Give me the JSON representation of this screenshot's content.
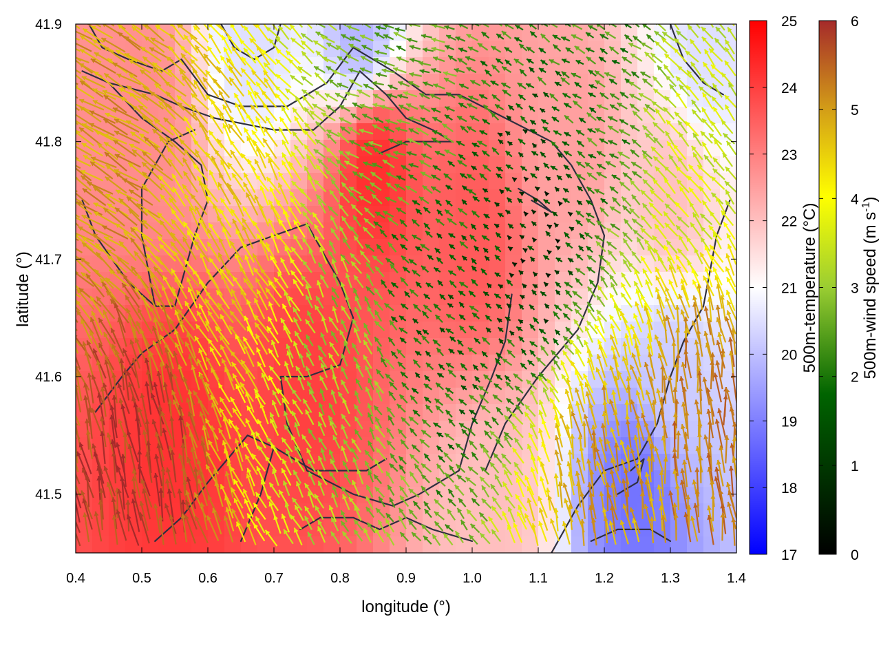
{
  "chart_data": {
    "type": "heatmap",
    "subtype": "temperature field with wind vectors and contour lines",
    "xlabel": "longitude (°)",
    "ylabel": "latitude (°)",
    "xlim": [
      0.4,
      1.4
    ],
    "ylim": [
      41.45,
      41.9
    ],
    "x_ticks": [
      "0.4",
      "0.5",
      "0.6",
      "0.7",
      "0.8",
      "0.9",
      "1.0",
      "1.1",
      "1.2",
      "1.3",
      "1.4"
    ],
    "y_ticks": [
      "41.5",
      "41.6",
      "41.7",
      "41.8",
      "41.9"
    ],
    "grid": false,
    "temperature_colorbar": {
      "label": "500m-temperature (°C)",
      "range": [
        17,
        25
      ],
      "ticks": [
        "17",
        "18",
        "19",
        "20",
        "21",
        "22",
        "23",
        "24",
        "25"
      ],
      "colors": [
        "#0000ff",
        "#ffffff",
        "#ff0000"
      ]
    },
    "wind_colorbar": {
      "label_main": "500m-wind speed (m s",
      "label_sup": "-1",
      "label_end": ")",
      "range": [
        0,
        6
      ],
      "ticks": [
        "0",
        "1",
        "2",
        "3",
        "4",
        "5",
        "6"
      ],
      "colors": [
        "#000000",
        "#006400",
        "#9acd32",
        "#ffff00",
        "#d4a017",
        "#a52a2a"
      ]
    },
    "temperature_regions": [
      {
        "lon": 0.75,
        "lat": 41.6,
        "temp": 24.0
      },
      {
        "lon": 0.85,
        "lat": 41.78,
        "temp": 24.3
      },
      {
        "lon": 0.55,
        "lat": 41.55,
        "temp": 24.2
      },
      {
        "lon": 1.0,
        "lat": 41.72,
        "temp": 23.6
      },
      {
        "lon": 1.15,
        "lat": 41.8,
        "temp": 22.5
      },
      {
        "lon": 0.5,
        "lat": 41.82,
        "temp": 22.8
      },
      {
        "lon": 1.3,
        "lat": 41.75,
        "temp": 22.0
      },
      {
        "lon": 1.25,
        "lat": 41.5,
        "temp": 18.8
      },
      {
        "lon": 1.3,
        "lat": 41.6,
        "temp": 20.2
      },
      {
        "lon": 0.83,
        "lat": 41.89,
        "temp": 19.8
      },
      {
        "lon": 0.67,
        "lat": 41.89,
        "temp": 20.5
      },
      {
        "lon": 1.35,
        "lat": 41.88,
        "temp": 20.5
      },
      {
        "lon": 1.02,
        "lat": 41.48,
        "temp": 22.0
      }
    ],
    "wind_regions": [
      {
        "lon": 0.5,
        "lat": 41.5,
        "speed": 5.8,
        "dir_deg": 100
      },
      {
        "lon": 0.45,
        "lat": 41.8,
        "speed": 4.8,
        "dir_deg": 150
      },
      {
        "lon": 0.65,
        "lat": 41.7,
        "speed": 4.2,
        "dir_deg": 120
      },
      {
        "lon": 0.8,
        "lat": 41.6,
        "speed": 2.5,
        "dir_deg": 115
      },
      {
        "lon": 0.95,
        "lat": 41.65,
        "speed": 1.2,
        "dir_deg": 140
      },
      {
        "lon": 1.1,
        "lat": 41.72,
        "speed": 0.6,
        "dir_deg": 140
      },
      {
        "lon": 1.2,
        "lat": 41.85,
        "speed": 1.6,
        "dir_deg": 150
      },
      {
        "lon": 1.35,
        "lat": 41.55,
        "speed": 5.2,
        "dir_deg": 95
      },
      {
        "lon": 1.2,
        "lat": 41.5,
        "speed": 4.8,
        "dir_deg": 100
      },
      {
        "lon": 0.9,
        "lat": 41.85,
        "speed": 2.0,
        "dir_deg": 160
      },
      {
        "lon": 1.35,
        "lat": 41.8,
        "speed": 3.0,
        "dir_deg": 130
      }
    ],
    "contours": [
      [
        [
          0.41,
          41.86
        ],
        [
          0.45,
          41.85
        ],
        [
          0.52,
          41.84
        ],
        [
          0.56,
          41.83
        ],
        [
          0.61,
          41.82
        ],
        [
          0.7,
          41.81
        ],
        [
          0.76,
          41.81
        ],
        [
          0.8,
          41.83
        ],
        [
          0.83,
          41.86
        ],
        [
          0.87,
          41.84
        ],
        [
          0.9,
          41.82
        ],
        [
          0.94,
          41.81
        ],
        [
          0.97,
          41.8
        ],
        [
          0.9,
          41.8
        ],
        [
          0.86,
          41.79
        ]
      ],
      [
        [
          0.42,
          41.9
        ],
        [
          0.44,
          41.88
        ],
        [
          0.48,
          41.87
        ],
        [
          0.53,
          41.86
        ],
        [
          0.56,
          41.87
        ],
        [
          0.6,
          41.84
        ],
        [
          0.65,
          41.83
        ],
        [
          0.72,
          41.83
        ],
        [
          0.78,
          41.85
        ],
        [
          0.82,
          41.88
        ],
        [
          0.85,
          41.87
        ],
        [
          0.88,
          41.86
        ],
        [
          0.93,
          41.84
        ],
        [
          0.98,
          41.84
        ],
        [
          1.05,
          41.82
        ],
        [
          1.12,
          41.8
        ],
        [
          1.15,
          41.78
        ],
        [
          1.18,
          41.75
        ],
        [
          1.2,
          41.72
        ],
        [
          1.19,
          41.68
        ],
        [
          1.16,
          41.64
        ],
        [
          1.1,
          41.6
        ],
        [
          1.05,
          41.56
        ],
        [
          1.02,
          41.52
        ]
      ],
      [
        [
          0.41,
          41.75
        ],
        [
          0.43,
          41.72
        ],
        [
          0.48,
          41.68
        ],
        [
          0.52,
          41.66
        ],
        [
          0.55,
          41.66
        ],
        [
          0.56,
          41.68
        ],
        [
          0.58,
          41.72
        ],
        [
          0.6,
          41.75
        ],
        [
          0.59,
          41.78
        ],
        [
          0.55,
          41.8
        ],
        [
          0.5,
          41.82
        ],
        [
          0.45,
          41.85
        ]
      ],
      [
        [
          0.52,
          41.66
        ],
        [
          0.5,
          41.72
        ],
        [
          0.5,
          41.76
        ],
        [
          0.54,
          41.8
        ],
        [
          0.58,
          41.81
        ]
      ],
      [
        [
          0.43,
          41.57
        ],
        [
          0.47,
          41.6
        ],
        [
          0.5,
          41.62
        ],
        [
          0.55,
          41.64
        ],
        [
          0.6,
          41.68
        ],
        [
          0.65,
          41.71
        ],
        [
          0.7,
          41.72
        ],
        [
          0.75,
          41.73
        ],
        [
          0.77,
          41.71
        ],
        [
          0.8,
          41.68
        ],
        [
          0.82,
          41.65
        ],
        [
          0.8,
          41.61
        ],
        [
          0.75,
          41.6
        ],
        [
          0.71,
          41.6
        ],
        [
          0.72,
          41.56
        ],
        [
          0.75,
          41.52
        ],
        [
          0.82,
          41.5
        ],
        [
          0.88,
          41.49
        ],
        [
          0.92,
          41.5
        ],
        [
          0.98,
          41.52
        ],
        [
          1.0,
          41.56
        ],
        [
          1.03,
          41.6
        ],
        [
          1.05,
          41.63
        ],
        [
          1.06,
          41.67
        ]
      ],
      [
        [
          0.52,
          41.46
        ],
        [
          0.56,
          41.48
        ],
        [
          0.6,
          41.51
        ],
        [
          0.63,
          41.53
        ],
        [
          0.66,
          41.55
        ],
        [
          0.7,
          41.54
        ],
        [
          0.73,
          41.53
        ],
        [
          0.76,
          41.52
        ],
        [
          0.8,
          41.52
        ],
        [
          0.84,
          41.52
        ],
        [
          0.87,
          41.53
        ]
      ],
      [
        [
          0.65,
          41.46
        ],
        [
          0.68,
          41.5
        ],
        [
          0.7,
          41.54
        ]
      ],
      [
        [
          0.74,
          41.47
        ],
        [
          0.77,
          41.48
        ],
        [
          0.82,
          41.48
        ],
        [
          0.86,
          41.47
        ],
        [
          0.9,
          41.48
        ],
        [
          0.94,
          41.47
        ],
        [
          1.0,
          41.46
        ]
      ],
      [
        [
          1.07,
          41.76
        ],
        [
          1.1,
          41.75
        ],
        [
          1.12,
          41.74
        ],
        [
          1.09,
          41.75
        ]
      ],
      [
        [
          1.12,
          41.45
        ],
        [
          1.16,
          41.49
        ],
        [
          1.2,
          41.52
        ],
        [
          1.25,
          41.53
        ],
        [
          1.28,
          41.56
        ],
        [
          1.3,
          41.6
        ],
        [
          1.32,
          41.63
        ],
        [
          1.35,
          41.66
        ],
        [
          1.37,
          41.72
        ],
        [
          1.39,
          41.75
        ]
      ],
      [
        [
          1.18,
          41.46
        ],
        [
          1.22,
          41.47
        ],
        [
          1.27,
          41.47
        ],
        [
          1.3,
          41.46
        ]
      ],
      [
        [
          1.22,
          41.5
        ],
        [
          1.25,
          41.51
        ],
        [
          1.26,
          41.53
        ],
        [
          1.24,
          41.52
        ]
      ],
      [
        [
          0.62,
          41.9
        ],
        [
          0.64,
          41.88
        ],
        [
          0.67,
          41.87
        ],
        [
          0.7,
          41.88
        ],
        [
          0.71,
          41.9
        ]
      ],
      [
        [
          1.3,
          41.9
        ],
        [
          1.32,
          41.87
        ],
        [
          1.35,
          41.85
        ],
        [
          1.38,
          41.84
        ]
      ]
    ]
  }
}
